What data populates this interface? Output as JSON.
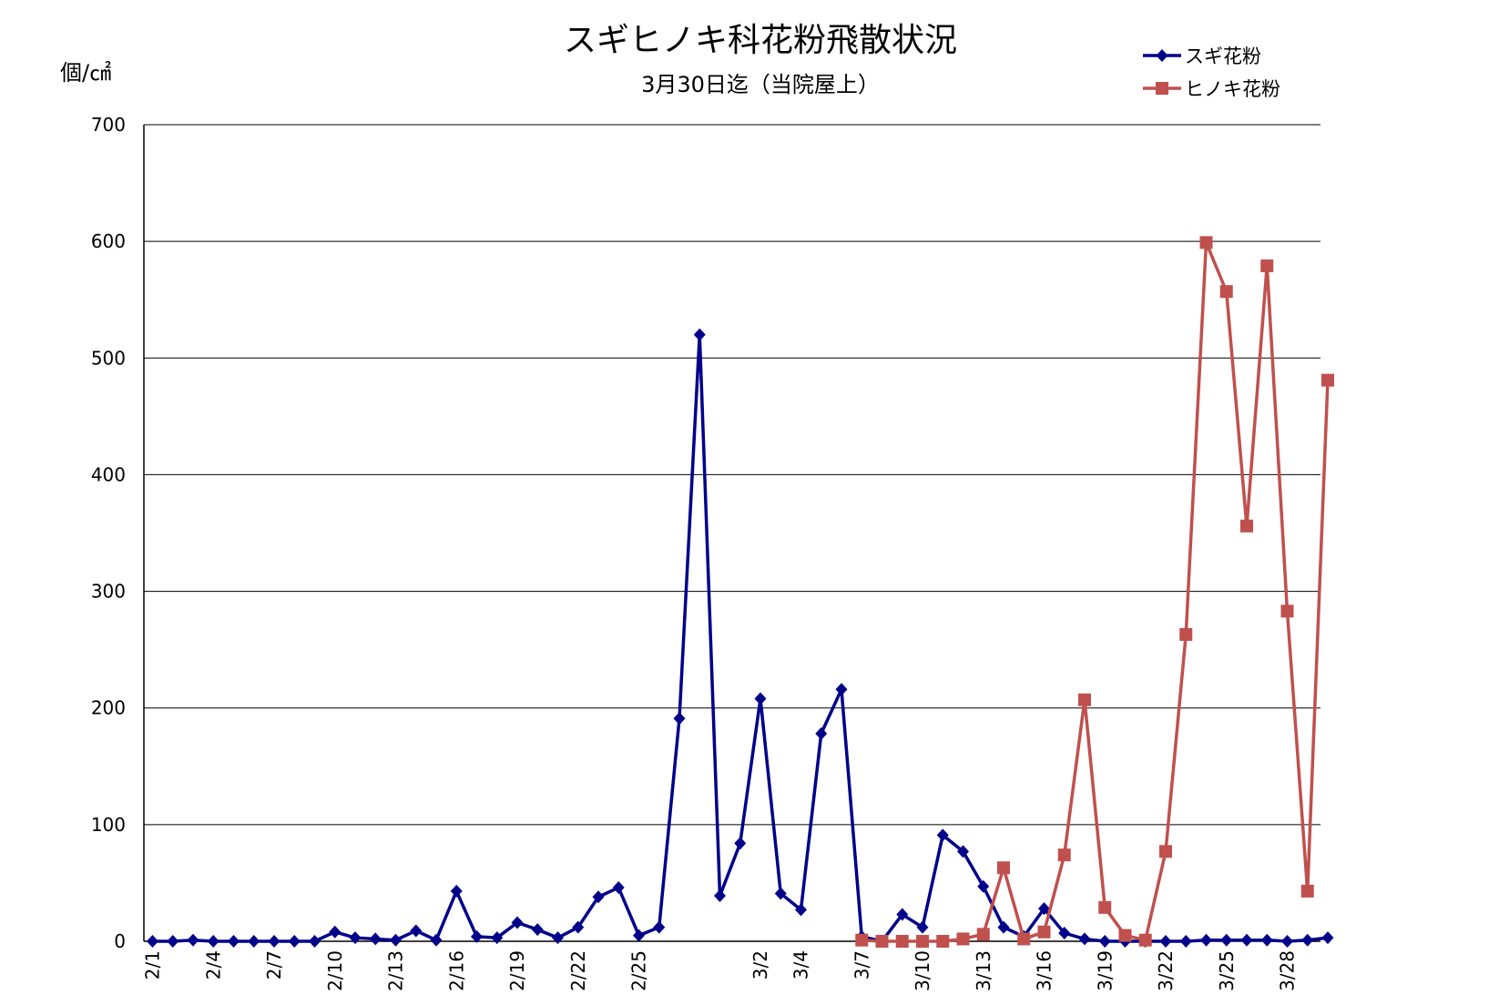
{
  "chart_data": {
    "type": "line",
    "title": "スギヒノキ科花粉飛散状況",
    "subtitle": "3月30日迄（当院屋上）",
    "ylabel": "個/㎠",
    "ylim": [
      0,
      700
    ],
    "yticks": [
      0,
      100,
      200,
      300,
      400,
      500,
      600,
      700
    ],
    "grid": true,
    "legend_position": "top-right",
    "x": [
      "2/1",
      "2/2",
      "2/3",
      "2/4",
      "2/5",
      "2/6",
      "2/7",
      "2/8",
      "2/9",
      "2/10",
      "2/11",
      "2/12",
      "2/13",
      "2/14",
      "2/15",
      "2/16",
      "2/17",
      "2/18",
      "2/19",
      "2/20",
      "2/21",
      "2/22",
      "2/23",
      "2/24",
      "2/25",
      "2/26",
      "2/27",
      "2/28",
      "2/29",
      "3/1",
      "3/2",
      "3/3",
      "3/4",
      "3/5",
      "3/6",
      "3/7",
      "3/8",
      "3/9",
      "3/10",
      "3/11",
      "3/12",
      "3/13",
      "3/14",
      "3/15",
      "3/16",
      "3/17",
      "3/18",
      "3/19",
      "3/20",
      "3/21",
      "3/22",
      "3/23",
      "3/24",
      "3/25",
      "3/26",
      "3/27",
      "3/28",
      "3/29",
      "3/30"
    ],
    "x_tick_labels": [
      {
        "index": 0,
        "label": "2/1"
      },
      {
        "index": 3,
        "label": "2/4"
      },
      {
        "index": 6,
        "label": "2/7"
      },
      {
        "index": 9,
        "label": "2/10"
      },
      {
        "index": 12,
        "label": "2/13"
      },
      {
        "index": 15,
        "label": "2/16"
      },
      {
        "index": 18,
        "label": "2/19"
      },
      {
        "index": 21,
        "label": "2/22"
      },
      {
        "index": 24,
        "label": "2/25"
      },
      {
        "index": 30,
        "label": "3/2"
      },
      {
        "index": 32,
        "label": "3/4"
      },
      {
        "index": 35,
        "label": "3/7"
      },
      {
        "index": 38,
        "label": "3/10"
      },
      {
        "index": 41,
        "label": "3/13"
      },
      {
        "index": 44,
        "label": "3/16"
      },
      {
        "index": 47,
        "label": "3/19"
      },
      {
        "index": 50,
        "label": "3/22"
      },
      {
        "index": 53,
        "label": "3/25"
      },
      {
        "index": 56,
        "label": "3/28"
      }
    ],
    "series": [
      {
        "name": "スギ花粉",
        "color": "#00008B",
        "marker": "diamond",
        "values": [
          0,
          0,
          1,
          0,
          0,
          0,
          0,
          0,
          0,
          8,
          3,
          2,
          1,
          9,
          1,
          43,
          4,
          3,
          16,
          10,
          3,
          12,
          38,
          46,
          5,
          12,
          191,
          520,
          39,
          84,
          208,
          41,
          27,
          178,
          216,
          4,
          0,
          23,
          12,
          91,
          77,
          47,
          12,
          4,
          28,
          7,
          2,
          0,
          0,
          0,
          0,
          0,
          1,
          1,
          1,
          1,
          0,
          1,
          3
        ]
      },
      {
        "name": "ヒノキ花粉",
        "color": "#C0504D",
        "marker": "square",
        "values": [
          null,
          null,
          null,
          null,
          null,
          null,
          null,
          null,
          null,
          null,
          null,
          null,
          null,
          null,
          null,
          null,
          null,
          null,
          null,
          null,
          null,
          null,
          null,
          null,
          null,
          null,
          null,
          null,
          null,
          null,
          null,
          null,
          null,
          null,
          null,
          1,
          0,
          0,
          0,
          0,
          2,
          6,
          63,
          2,
          8,
          74,
          207,
          29,
          5,
          1,
          77,
          263,
          599,
          557,
          356,
          579,
          283,
          43,
          481
        ]
      }
    ]
  }
}
